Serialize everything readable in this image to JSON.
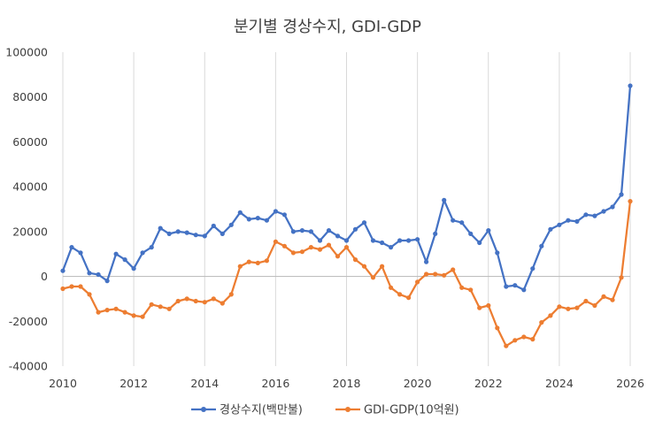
{
  "chart_data": {
    "type": "line",
    "title": "분기별 경상수지, GDI-GDP",
    "xlabel": "",
    "ylabel": "",
    "xlim": [
      2010,
      2026
    ],
    "ylim": [
      -40000,
      100000
    ],
    "x_ticks": [
      "2010",
      "2012",
      "2014",
      "2016",
      "2018",
      "2020",
      "2022",
      "2024",
      "2026"
    ],
    "y_ticks": [
      "100000",
      "80000",
      "60000",
      "40000",
      "20000",
      "0",
      "-20000",
      "-40000"
    ],
    "grid": "vertical",
    "legend_position": "bottom",
    "x": [
      2010.0,
      2010.25,
      2010.5,
      2010.75,
      2011.0,
      2011.25,
      2011.5,
      2011.75,
      2012.0,
      2012.25,
      2012.5,
      2012.75,
      2013.0,
      2013.25,
      2013.5,
      2013.75,
      2014.0,
      2014.25,
      2014.5,
      2014.75,
      2015.0,
      2015.25,
      2015.5,
      2015.75,
      2016.0,
      2016.25,
      2016.5,
      2016.75,
      2017.0,
      2017.25,
      2017.5,
      2017.75,
      2018.0,
      2018.25,
      2018.5,
      2018.75,
      2019.0,
      2019.25,
      2019.5,
      2019.75,
      2020.0,
      2020.25,
      2020.5,
      2020.75,
      2021.0,
      2021.25,
      2021.5,
      2021.75,
      2022.0,
      2022.25,
      2022.5,
      2022.75,
      2023.0,
      2023.25,
      2023.5,
      2023.75,
      2024.0,
      2024.25,
      2024.5,
      2024.75,
      2025.0,
      2025.25,
      2025.5,
      2025.75,
      2026.0
    ],
    "series": [
      {
        "name": "경상수지(백만불)",
        "color": "#4472c4",
        "values": [
          2500,
          13000,
          10500,
          1500,
          800,
          -2000,
          10000,
          7500,
          3500,
          10500,
          13000,
          21500,
          19000,
          20000,
          19500,
          18500,
          18000,
          22500,
          19000,
          23000,
          28500,
          25500,
          26000,
          25000,
          29000,
          27500,
          20000,
          20500,
          20000,
          16000,
          20500,
          18000,
          16000,
          21000,
          24000,
          16000,
          15000,
          13000,
          16000,
          16000,
          16500,
          6500,
          19000,
          34000,
          25000,
          24000,
          19000,
          15000,
          20500,
          10500,
          -4500,
          -4000,
          -6000,
          3500,
          13500,
          21000,
          23000,
          25000,
          24500,
          27500,
          27000,
          29000,
          31000,
          36500,
          85000
        ]
      },
      {
        "name": "GDI-GDP(10억원)",
        "color": "#ed7d31",
        "values": [
          -5500,
          -4500,
          -4500,
          -8000,
          -16000,
          -15000,
          -14500,
          -16000,
          -17500,
          -18000,
          -12500,
          -13500,
          -14500,
          -11000,
          -10000,
          -11000,
          -11500,
          -10000,
          -12000,
          -8000,
          4500,
          6500,
          6000,
          7000,
          15500,
          13500,
          10500,
          11000,
          13000,
          12000,
          14000,
          9000,
          13000,
          7500,
          4500,
          -500,
          4500,
          -5000,
          -8000,
          -9500,
          -2500,
          1000,
          1000,
          500,
          3000,
          -5000,
          -6000,
          -14000,
          -13000,
          -23000,
          -31000,
          -28500,
          -27000,
          -28000,
          -20500,
          -17500,
          -13500,
          -14500,
          -14000,
          -11000,
          -13000,
          -9000,
          -10500,
          -500,
          33500
        ]
      }
    ]
  }
}
